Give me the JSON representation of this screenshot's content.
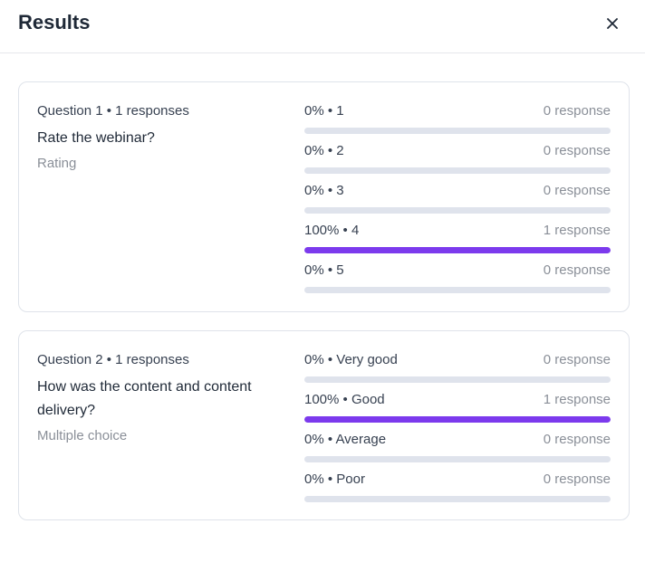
{
  "header": {
    "title": "Results",
    "close_icon": "close-icon"
  },
  "questions": [
    {
      "meta": "Question 1 • 1 responses",
      "text": "Rate the webinar?",
      "type": "Rating",
      "options": [
        {
          "label": "0% • 1",
          "count": "0 response",
          "fraction": 0
        },
        {
          "label": "0% • 2",
          "count": "0 response",
          "fraction": 0
        },
        {
          "label": "0% • 3",
          "count": "0 response",
          "fraction": 0
        },
        {
          "label": "100% • 4",
          "count": "1 response",
          "fraction": 1
        },
        {
          "label": "0% • 5",
          "count": "0 response",
          "fraction": 0
        }
      ]
    },
    {
      "meta": "Question 2 • 1 responses",
      "text": "How was the content and content delivery?",
      "type": "Multiple choice",
      "options": [
        {
          "label": "0% • Very good",
          "count": "0 response",
          "fraction": 0
        },
        {
          "label": "100% • Good",
          "count": "1 response",
          "fraction": 1
        },
        {
          "label": "0% • Average",
          "count": "0 response",
          "fraction": 0
        },
        {
          "label": "0% • Poor",
          "count": "0 response",
          "fraction": 0
        }
      ]
    }
  ],
  "colors": {
    "accent": "#7c3aed",
    "track": "#dfe3ec"
  }
}
